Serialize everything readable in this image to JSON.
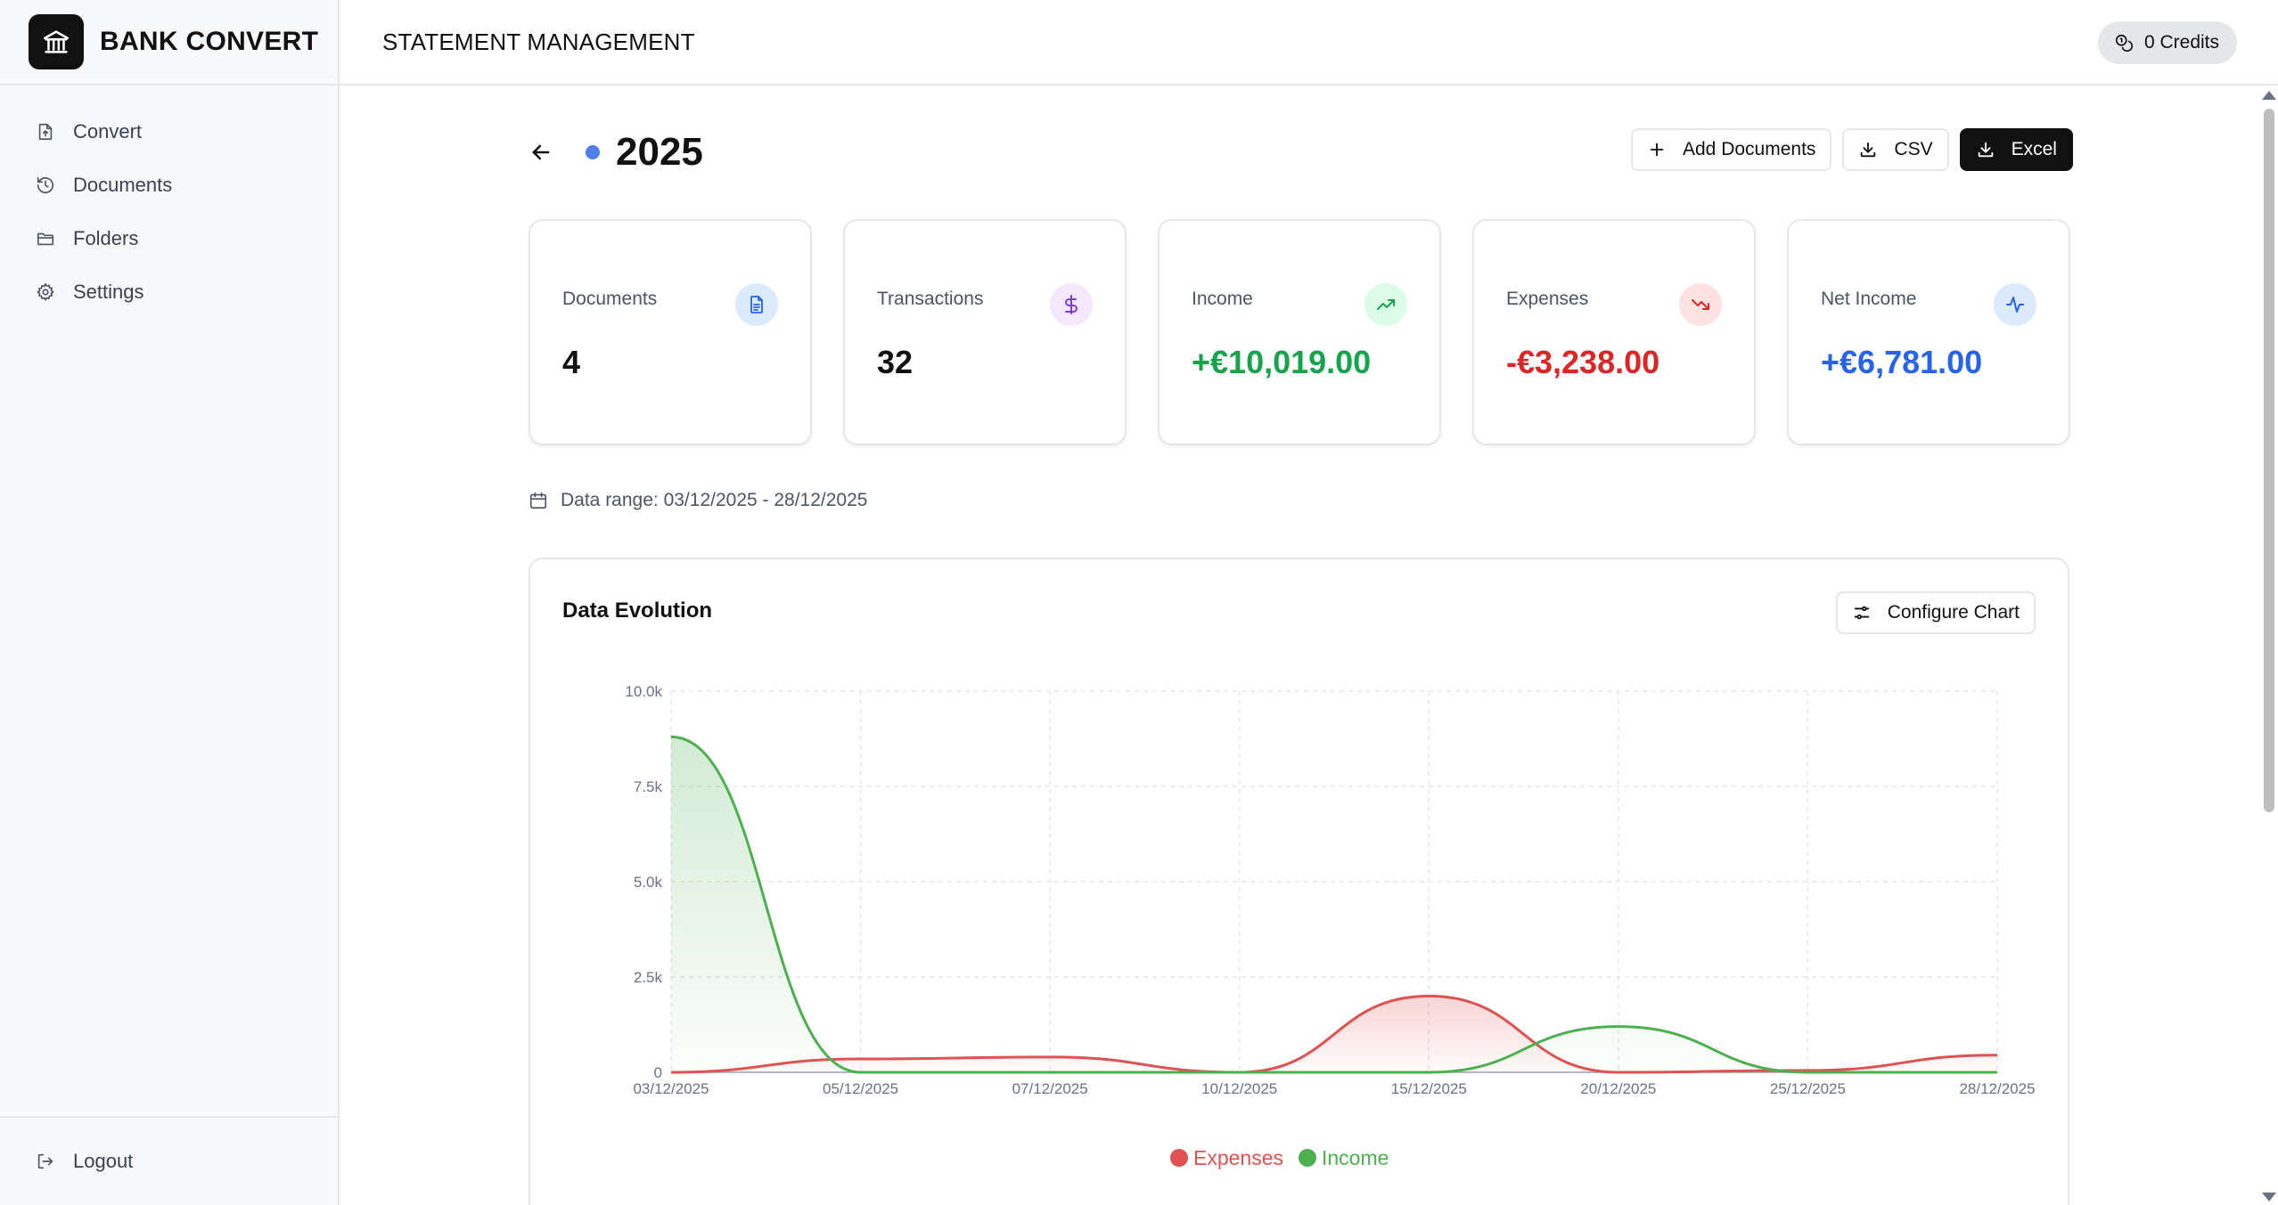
{
  "app": {
    "name": "BANK CONVERT"
  },
  "header": {
    "title": "STATEMENT MANAGEMENT",
    "credits": "0 Credits"
  },
  "sidebar": {
    "items": [
      {
        "label": "Convert",
        "icon": "file-upload-icon"
      },
      {
        "label": "Documents",
        "icon": "history-icon"
      },
      {
        "label": "Folders",
        "icon": "folder-icon"
      },
      {
        "label": "Settings",
        "icon": "gear-icon"
      }
    ],
    "logout": "Logout"
  },
  "page": {
    "title": "2025",
    "dot_color": "#4f7fe8",
    "actions": {
      "add": "Add Documents",
      "csv": "CSV",
      "excel": "Excel"
    }
  },
  "cards": [
    {
      "label": "Documents",
      "value": "4",
      "icon": "document-icon",
      "color": "#111111",
      "icon_bg": "#dbeafe",
      "icon_color": "#2563eb"
    },
    {
      "label": "Transactions",
      "value": "32",
      "icon": "dollar-icon",
      "color": "#111111",
      "icon_bg": "#f3e8ff",
      "icon_color": "#7c3aed"
    },
    {
      "label": "Income",
      "value": "+€10,019.00",
      "icon": "trending-up-icon",
      "color": "#16a34a",
      "icon_bg": "#dcfce7",
      "icon_color": "#16a34a"
    },
    {
      "label": "Expenses",
      "value": "-€3,238.00",
      "icon": "trending-down-icon",
      "color": "#dc2626",
      "icon_bg": "#fee2e2",
      "icon_color": "#dc2626"
    },
    {
      "label": "Net Income",
      "value": "+€6,781.00",
      "icon": "activity-icon",
      "color": "#2563eb",
      "icon_bg": "#dbeafe",
      "icon_color": "#2563eb"
    }
  ],
  "range_text": "Data range: 03/12/2025 - 28/12/2025",
  "chart": {
    "title": "Data Evolution",
    "configure_label": "Configure Chart"
  },
  "chart_data": {
    "type": "area",
    "title": "Data Evolution",
    "x": [
      "03/12/2025",
      "05/12/2025",
      "07/12/2025",
      "10/12/2025",
      "15/12/2025",
      "20/12/2025",
      "25/12/2025",
      "28/12/2025"
    ],
    "series": [
      {
        "name": "Expenses",
        "color": "#e05252",
        "values": [
          0,
          350,
          400,
          0,
          2000,
          0,
          50,
          450
        ]
      },
      {
        "name": "Income",
        "color": "#4caf50",
        "values": [
          8800,
          0,
          0,
          0,
          0,
          1200,
          0,
          0
        ]
      }
    ],
    "yticks": [
      "0",
      "2.5k",
      "5.0k",
      "7.5k",
      "10.0k"
    ],
    "ylim": [
      0,
      10000
    ],
    "grid": true,
    "legend": "bottom-center"
  }
}
